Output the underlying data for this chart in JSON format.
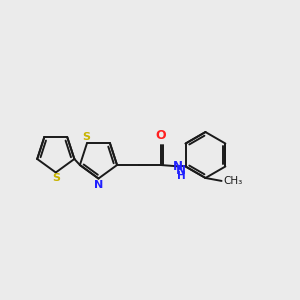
{
  "background_color": "#ebebeb",
  "bond_color": "#1a1a1a",
  "sulfur_color": "#c8b400",
  "nitrogen_color": "#2020ff",
  "oxygen_color": "#ff2020",
  "line_width": 1.4,
  "figsize": [
    3.0,
    3.0
  ],
  "dpi": 100,
  "xlim": [
    0,
    10
  ],
  "ylim": [
    2,
    8
  ]
}
